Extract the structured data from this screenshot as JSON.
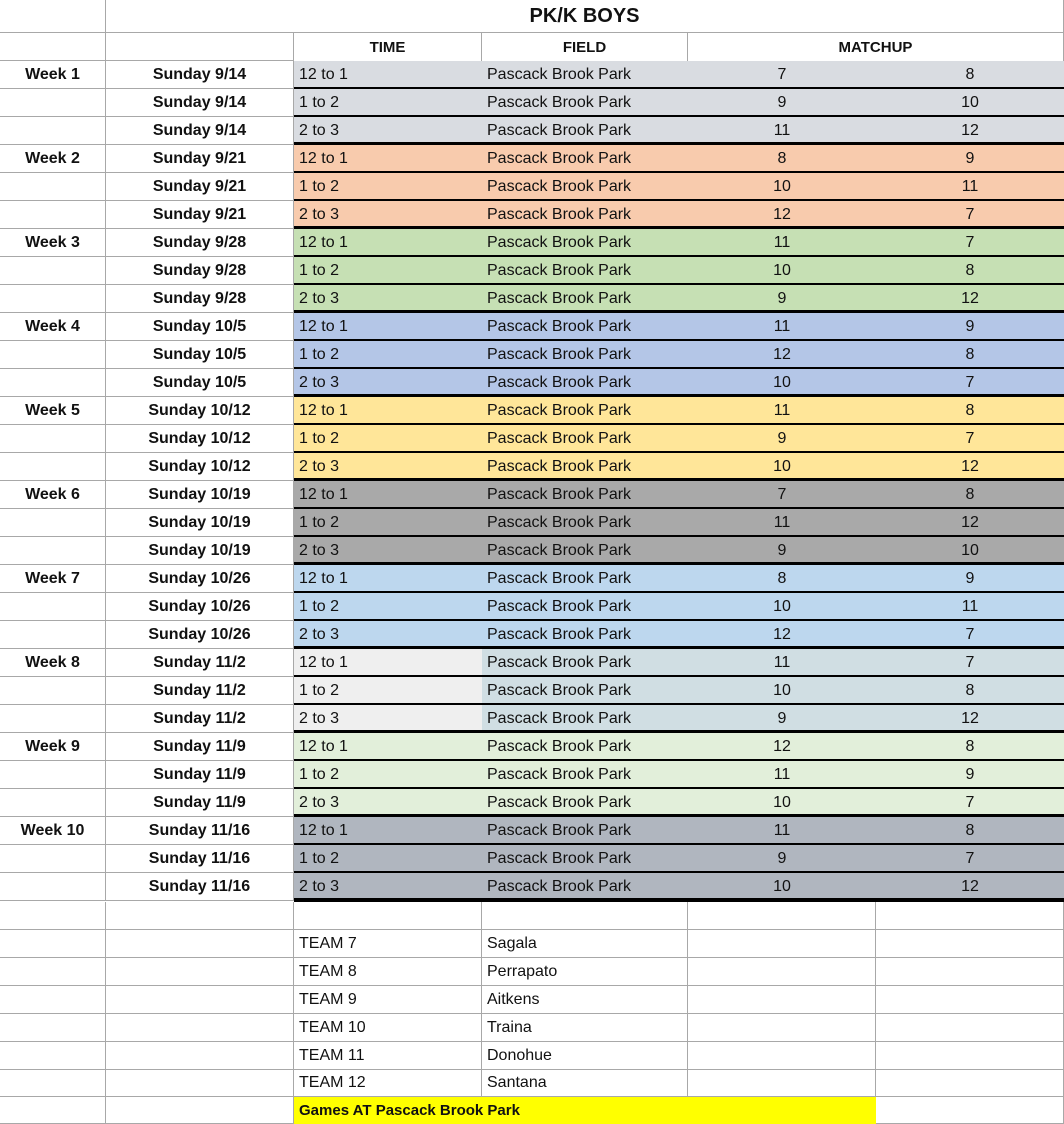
{
  "title": "PK/K BOYS",
  "headers": {
    "time": "TIME",
    "field": "FIELD",
    "matchup": "MATCHUP"
  },
  "weeks": [
    {
      "label": "Week 1",
      "color": "#d9dce1",
      "games": [
        {
          "date": "Sunday 9/14",
          "time": "12 to 1",
          "field": "Pascack Brook Park",
          "home": "7",
          "away": "8"
        },
        {
          "date": "Sunday 9/14",
          "time": "1 to 2",
          "field": "Pascack Brook Park",
          "home": "9",
          "away": "10"
        },
        {
          "date": "Sunday 9/14",
          "time": "2 to 3",
          "field": "Pascack Brook Park",
          "home": "11",
          "away": "12"
        }
      ]
    },
    {
      "label": "Week 2",
      "color": "#f8cbad",
      "games": [
        {
          "date": "Sunday 9/21",
          "time": "12 to 1",
          "field": "Pascack Brook Park",
          "home": "8",
          "away": "9"
        },
        {
          "date": "Sunday 9/21",
          "time": "1 to 2",
          "field": "Pascack Brook Park",
          "home": "10",
          "away": "11"
        },
        {
          "date": "Sunday 9/21",
          "time": "2 to 3",
          "field": "Pascack Brook Park",
          "home": "12",
          "away": "7"
        }
      ]
    },
    {
      "label": "Week 3",
      "color": "#c6e0b4",
      "games": [
        {
          "date": "Sunday 9/28",
          "time": "12 to 1",
          "field": "Pascack Brook Park",
          "home": "11",
          "away": "7"
        },
        {
          "date": "Sunday 9/28",
          "time": "1 to 2",
          "field": "Pascack Brook Park",
          "home": "10",
          "away": "8"
        },
        {
          "date": "Sunday 9/28",
          "time": "2 to 3",
          "field": "Pascack Brook Park",
          "home": "9",
          "away": "12"
        }
      ]
    },
    {
      "label": "Week 4",
      "color": "#b4c6e7",
      "games": [
        {
          "date": "Sunday 10/5",
          "time": "12 to 1",
          "field": "Pascack Brook Park",
          "home": "11",
          "away": "9"
        },
        {
          "date": "Sunday 10/5",
          "time": "1 to 2",
          "field": "Pascack Brook Park",
          "home": "12",
          "away": "8"
        },
        {
          "date": "Sunday 10/5",
          "time": "2 to 3",
          "field": "Pascack Brook Park",
          "home": "10",
          "away": "7"
        }
      ]
    },
    {
      "label": "Week 5",
      "color": "#ffe699",
      "games": [
        {
          "date": "Sunday 10/12",
          "time": "12 to 1",
          "field": "Pascack Brook Park",
          "home": "11",
          "away": "8"
        },
        {
          "date": "Sunday 10/12",
          "time": "1 to 2",
          "field": "Pascack Brook Park",
          "home": "9",
          "away": "7"
        },
        {
          "date": "Sunday 10/12",
          "time": "2 to 3",
          "field": "Pascack Brook Park",
          "home": "10",
          "away": "12"
        }
      ]
    },
    {
      "label": "Week 6",
      "color": "#a9a9a9",
      "games": [
        {
          "date": "Sunday 10/19",
          "time": "12 to 1",
          "field": "Pascack Brook Park",
          "home": "7",
          "away": "8"
        },
        {
          "date": "Sunday 10/19",
          "time": "1 to 2",
          "field": "Pascack Brook Park",
          "home": "11",
          "away": "12"
        },
        {
          "date": "Sunday 10/19",
          "time": "2 to 3",
          "field": "Pascack Brook Park",
          "home": "9",
          "away": "10"
        }
      ]
    },
    {
      "label": "Week 7",
      "color": "#bdd7ee",
      "games": [
        {
          "date": "Sunday 10/26",
          "time": "12 to 1",
          "field": "Pascack Brook Park",
          "home": "8",
          "away": "9"
        },
        {
          "date": "Sunday 10/26",
          "time": "1 to 2",
          "field": "Pascack Brook Park",
          "home": "10",
          "away": "11"
        },
        {
          "date": "Sunday 10/26",
          "time": "2 to 3",
          "field": "Pascack Brook Park",
          "home": "12",
          "away": "7"
        }
      ]
    },
    {
      "label": "Week 8",
      "color": "#d0dee3",
      "time_color": "#efefef",
      "games": [
        {
          "date": "Sunday 11/2",
          "time": "12 to 1",
          "field": "Pascack Brook Park",
          "home": "11",
          "away": "7"
        },
        {
          "date": "Sunday 11/2",
          "time": "1 to 2",
          "field": "Pascack Brook Park",
          "home": "10",
          "away": "8"
        },
        {
          "date": "Sunday 11/2",
          "time": "2 to 3",
          "field": "Pascack Brook Park",
          "home": "9",
          "away": "12"
        }
      ]
    },
    {
      "label": "Week 9",
      "color": "#e2efda",
      "games": [
        {
          "date": "Sunday 11/9",
          "time": "12 to 1",
          "field": "Pascack Brook Park",
          "home": "12",
          "away": "8"
        },
        {
          "date": "Sunday 11/9",
          "time": "1 to 2",
          "field": "Pascack Brook Park",
          "home": "11",
          "away": "9"
        },
        {
          "date": "Sunday 11/9",
          "time": "2 to 3",
          "field": "Pascack Brook Park",
          "home": "10",
          "away": "7"
        }
      ]
    },
    {
      "label": "Week 10",
      "color": "#b0b6bf",
      "games": [
        {
          "date": "Sunday 11/16",
          "time": "12 to 1",
          "field": "Pascack Brook Park",
          "home": "11",
          "away": "8"
        },
        {
          "date": "Sunday 11/16",
          "time": "1 to 2",
          "field": "Pascack Brook Park",
          "home": "9",
          "away": "7"
        },
        {
          "date": "Sunday 11/16",
          "time": "2 to 3",
          "field": "Pascack Brook Park",
          "home": "10",
          "away": "12"
        }
      ]
    }
  ],
  "teams": [
    {
      "team": "TEAM 7",
      "coach": "Sagala"
    },
    {
      "team": "TEAM 8",
      "coach": "Perrapato"
    },
    {
      "team": "TEAM 9",
      "coach": "Aitkens"
    },
    {
      "team": "TEAM 10",
      "coach": "Traina"
    },
    {
      "team": "TEAM 11",
      "coach": "Donohue"
    },
    {
      "team": "TEAM 12",
      "coach": "Santana"
    }
  ],
  "footer_note": "Games AT Pascack Brook Park",
  "footer_color": "#ffff00"
}
